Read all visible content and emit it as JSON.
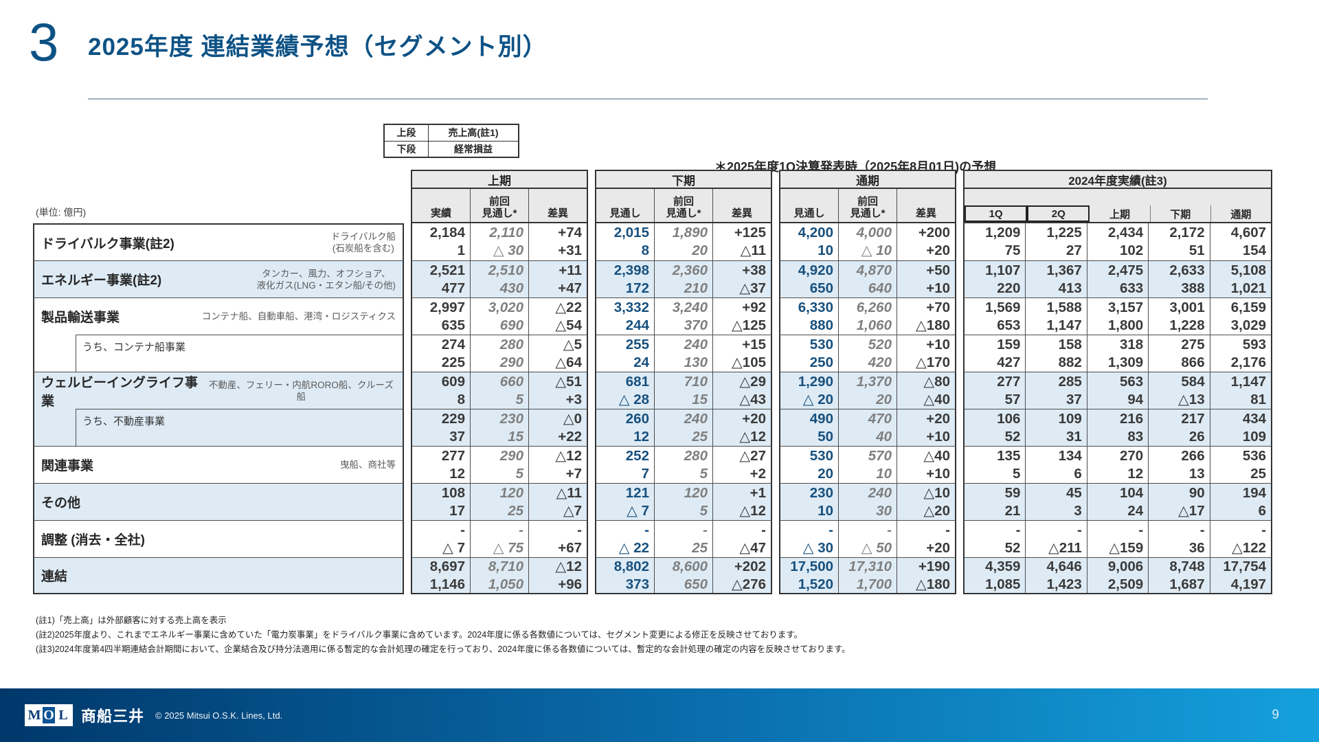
{
  "slide": {
    "number": "3",
    "title": "2025年度 連結業績予想（セグメント別）",
    "forecast_note": "＊2025年度1Q決算発表時（2025年8月01日)の予想",
    "unit_label": "(単位: 億円)",
    "page_number": "9"
  },
  "colors": {
    "accent_blue": "#0E5285",
    "forecast_value_blue": "#17507E",
    "highlight_row": "#DEEBF5",
    "header_gray": "#E9E9E9"
  },
  "legend": {
    "rows": [
      {
        "key": "上段",
        "value": "売上高(註1)"
      },
      {
        "key": "下段",
        "value": "経常損益"
      }
    ]
  },
  "table": {
    "groups": [
      {
        "label": "上期",
        "cols": [
          "実績",
          "前回\n見通し*",
          "差異"
        ]
      },
      {
        "label": "下期",
        "cols": [
          "見通し",
          "前回\n見通し*",
          "差異"
        ]
      },
      {
        "label": "通期",
        "cols": [
          "見通し",
          "前回\n見通し*",
          "差異"
        ]
      },
      {
        "label": "2024年度実績(註3)",
        "cols": [
          "1Q",
          "2Q",
          "上期",
          "下期",
          "通期"
        ]
      }
    ],
    "rows": [
      {
        "label": "ドライバルク事業(註2)",
        "desc": "ドライバルク船\n(石炭船を含む)",
        "sub": false,
        "shade": "white",
        "fh": [
          [
            "2,184",
            "1"
          ],
          [
            "2,110",
            "△ 30"
          ],
          [
            "+74",
            "+31"
          ]
        ],
        "sh": [
          [
            "2,015",
            "8"
          ],
          [
            "1,890",
            "20"
          ],
          [
            "+125",
            "△11"
          ]
        ],
        "fy": [
          [
            "4,200",
            "10"
          ],
          [
            "4,000",
            "△ 10"
          ],
          [
            "+200",
            "+20"
          ]
        ],
        "fy2024": [
          [
            "1,209",
            "75"
          ],
          [
            "1,225",
            "27"
          ],
          [
            "2,434",
            "102"
          ],
          [
            "2,172",
            "51"
          ],
          [
            "4,607",
            "154"
          ]
        ]
      },
      {
        "label": "エネルギー事業(註2)",
        "desc": "タンカー、風力、オフショア、\n液化ガス(LNG・エタン船/その他)",
        "sub": false,
        "shade": "blue",
        "fh": [
          [
            "2,521",
            "477"
          ],
          [
            "2,510",
            "430"
          ],
          [
            "+11",
            "+47"
          ]
        ],
        "sh": [
          [
            "2,398",
            "172"
          ],
          [
            "2,360",
            "210"
          ],
          [
            "+38",
            "△37"
          ]
        ],
        "fy": [
          [
            "4,920",
            "650"
          ],
          [
            "4,870",
            "640"
          ],
          [
            "+50",
            "+10"
          ]
        ],
        "fy2024": [
          [
            "1,107",
            "220"
          ],
          [
            "1,367",
            "413"
          ],
          [
            "2,475",
            "633"
          ],
          [
            "2,633",
            "388"
          ],
          [
            "5,108",
            "1,021"
          ]
        ]
      },
      {
        "label": "製品輸送事業",
        "desc": "コンテナ船、自動車船、港湾・ロジスティクス",
        "sub": false,
        "shade": "white",
        "fh": [
          [
            "2,997",
            "635"
          ],
          [
            "3,020",
            "690"
          ],
          [
            "△22",
            "△54"
          ]
        ],
        "sh": [
          [
            "3,332",
            "244"
          ],
          [
            "3,240",
            "370"
          ],
          [
            "+92",
            "△125"
          ]
        ],
        "fy": [
          [
            "6,330",
            "880"
          ],
          [
            "6,260",
            "1,060"
          ],
          [
            "+70",
            "△180"
          ]
        ],
        "fy2024": [
          [
            "1,569",
            "653"
          ],
          [
            "1,588",
            "1,147"
          ],
          [
            "3,157",
            "1,800"
          ],
          [
            "3,001",
            "1,228"
          ],
          [
            "6,159",
            "3,029"
          ]
        ]
      },
      {
        "label": "うち、コンテナ船事業",
        "desc": "",
        "sub": true,
        "shade": "white",
        "fh": [
          [
            "274",
            "225"
          ],
          [
            "280",
            "290"
          ],
          [
            "△5",
            "△64"
          ]
        ],
        "sh": [
          [
            "255",
            "24"
          ],
          [
            "240",
            "130"
          ],
          [
            "+15",
            "△105"
          ]
        ],
        "fy": [
          [
            "530",
            "250"
          ],
          [
            "520",
            "420"
          ],
          [
            "+10",
            "△170"
          ]
        ],
        "fy2024": [
          [
            "159",
            "427"
          ],
          [
            "158",
            "882"
          ],
          [
            "318",
            "1,309"
          ],
          [
            "275",
            "866"
          ],
          [
            "593",
            "2,176"
          ]
        ]
      },
      {
        "label": "ウェルビーイングライフ事業",
        "desc": "不動産、フェリー・内航RORO船、クルーズ船",
        "sub": false,
        "shade": "blue",
        "fh": [
          [
            "609",
            "8"
          ],
          [
            "660",
            "5"
          ],
          [
            "△51",
            "+3"
          ]
        ],
        "sh": [
          [
            "681",
            "△ 28"
          ],
          [
            "710",
            "15"
          ],
          [
            "△29",
            "△43"
          ]
        ],
        "fy": [
          [
            "1,290",
            "△ 20"
          ],
          [
            "1,370",
            "20"
          ],
          [
            "△80",
            "△40"
          ]
        ],
        "fy2024": [
          [
            "277",
            "57"
          ],
          [
            "285",
            "37"
          ],
          [
            "563",
            "94"
          ],
          [
            "584",
            "△13"
          ],
          [
            "1,147",
            "81"
          ]
        ]
      },
      {
        "label": "うち、不動産事業",
        "desc": "",
        "sub": true,
        "shade": "blue",
        "fh": [
          [
            "229",
            "37"
          ],
          [
            "230",
            "15"
          ],
          [
            "△0",
            "+22"
          ]
        ],
        "sh": [
          [
            "260",
            "12"
          ],
          [
            "240",
            "25"
          ],
          [
            "+20",
            "△12"
          ]
        ],
        "fy": [
          [
            "490",
            "50"
          ],
          [
            "470",
            "40"
          ],
          [
            "+20",
            "+10"
          ]
        ],
        "fy2024": [
          [
            "106",
            "52"
          ],
          [
            "109",
            "31"
          ],
          [
            "216",
            "83"
          ],
          [
            "217",
            "26"
          ],
          [
            "434",
            "109"
          ]
        ]
      },
      {
        "label": "関連事業",
        "desc": "曳船、商社等",
        "sub": false,
        "shade": "white",
        "fh": [
          [
            "277",
            "12"
          ],
          [
            "290",
            "5"
          ],
          [
            "△12",
            "+7"
          ]
        ],
        "sh": [
          [
            "252",
            "7"
          ],
          [
            "280",
            "5"
          ],
          [
            "△27",
            "+2"
          ]
        ],
        "fy": [
          [
            "530",
            "20"
          ],
          [
            "570",
            "10"
          ],
          [
            "△40",
            "+10"
          ]
        ],
        "fy2024": [
          [
            "135",
            "5"
          ],
          [
            "134",
            "6"
          ],
          [
            "270",
            "12"
          ],
          [
            "266",
            "13"
          ],
          [
            "536",
            "25"
          ]
        ]
      },
      {
        "label": "その他",
        "desc": "",
        "sub": false,
        "shade": "blue",
        "fh": [
          [
            "108",
            "17"
          ],
          [
            "120",
            "25"
          ],
          [
            "△11",
            "△7"
          ]
        ],
        "sh": [
          [
            "121",
            "△ 7"
          ],
          [
            "120",
            "5"
          ],
          [
            "+1",
            "△12"
          ]
        ],
        "fy": [
          [
            "230",
            "10"
          ],
          [
            "240",
            "30"
          ],
          [
            "△10",
            "△20"
          ]
        ],
        "fy2024": [
          [
            "59",
            "21"
          ],
          [
            "45",
            "3"
          ],
          [
            "104",
            "24"
          ],
          [
            "90",
            "△17"
          ],
          [
            "194",
            "6"
          ]
        ]
      },
      {
        "label": "調整 (消去・全社)",
        "desc": "",
        "sub": false,
        "shade": "white",
        "fh": [
          [
            "-",
            "△ 7"
          ],
          [
            "-",
            "△ 75"
          ],
          [
            "-",
            "+67"
          ]
        ],
        "sh": [
          [
            "-",
            "△ 22"
          ],
          [
            "-",
            "25"
          ],
          [
            "-",
            "△47"
          ]
        ],
        "fy": [
          [
            "-",
            "△ 30"
          ],
          [
            "-",
            "△ 50"
          ],
          [
            "-",
            "+20"
          ]
        ],
        "fy2024": [
          [
            "-",
            "52"
          ],
          [
            "-",
            "△211"
          ],
          [
            "-",
            "△159"
          ],
          [
            "-",
            "36"
          ],
          [
            "-",
            "△122"
          ]
        ]
      },
      {
        "label": "連結",
        "desc": "",
        "sub": false,
        "shade": "blue",
        "fh": [
          [
            "8,697",
            "1,146"
          ],
          [
            "8,710",
            "1,050"
          ],
          [
            "△12",
            "+96"
          ]
        ],
        "sh": [
          [
            "8,802",
            "373"
          ],
          [
            "8,600",
            "650"
          ],
          [
            "+202",
            "△276"
          ]
        ],
        "fy": [
          [
            "17,500",
            "1,520"
          ],
          [
            "17,310",
            "1,700"
          ],
          [
            "+190",
            "△180"
          ]
        ],
        "fy2024": [
          [
            "4,359",
            "1,085"
          ],
          [
            "4,646",
            "1,423"
          ],
          [
            "9,006",
            "2,509"
          ],
          [
            "8,748",
            "1,687"
          ],
          [
            "17,754",
            "4,197"
          ]
        ]
      }
    ]
  },
  "footnotes": [
    "(註1)「売上高」は外部顧客に対する売上高を表示",
    "(註2)2025年度より、これまでエネルギー事業に含めていた「電力炭事業」をドライバルク事業に含めています。2024年度に係る各数値については、セグメント変更による修正を反映させております。",
    "(註3)2024年度第4四半期連結会計期間において、企業結合及び持分法適用に係る暫定的な会計処理の確定を行っており、2024年度に係る各数値については、暫定的な会計処理の確定の内容を反映させております。"
  ],
  "footer": {
    "logo": [
      "M",
      "O",
      "L"
    ],
    "brand": "商船三井",
    "copyright": "© 2025 Mitsui O.S.K. Lines, Ltd."
  }
}
